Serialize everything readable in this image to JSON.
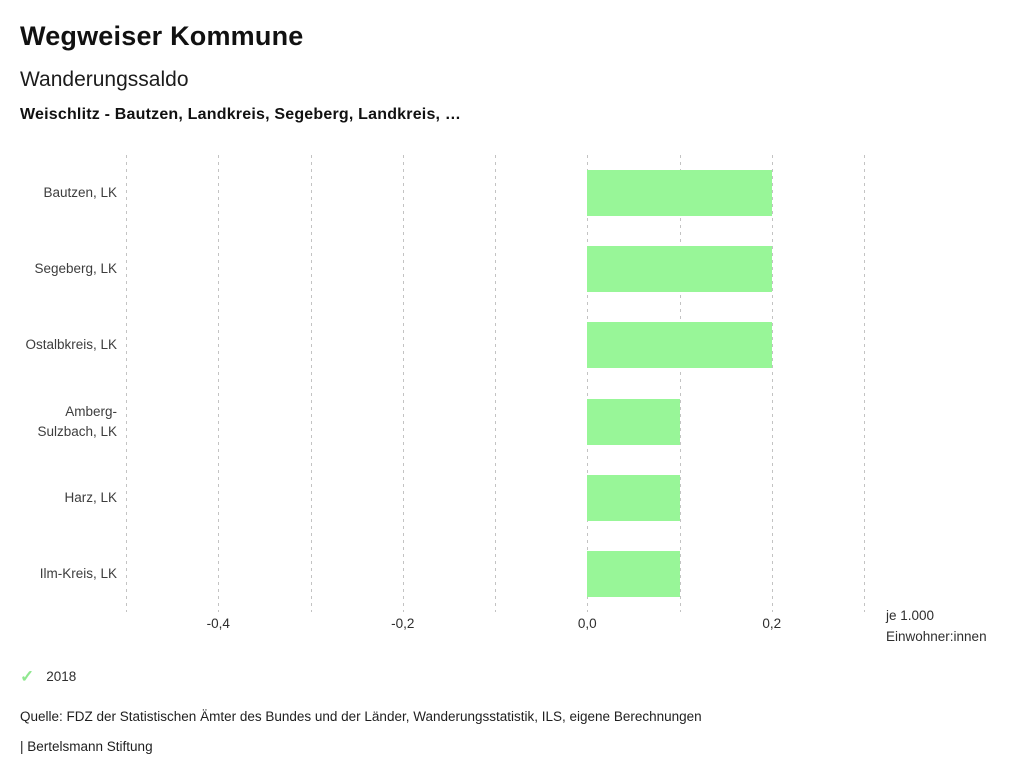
{
  "page": {
    "title": "Wegweiser Kommune",
    "subtitle": "Wanderungssaldo",
    "filter_line": "Weischlitz - Bautzen, Landkreis, Segeberg, Landkreis, …"
  },
  "chart_data": {
    "type": "bar",
    "orientation": "horizontal",
    "title": "Wanderungssaldo",
    "categories": [
      "Bautzen, LK",
      "Segeberg, LK",
      "Ostalbkreis, LK",
      "Amberg-Sulzbach, LK",
      "Harz, LK",
      "Ilm-Kreis, LK"
    ],
    "series": [
      {
        "name": "2018",
        "values": [
          0.2,
          0.2,
          0.2,
          0.1,
          0.1,
          0.1
        ]
      }
    ],
    "xlim": [
      -0.5,
      0.3
    ],
    "gridline_step": 0.1,
    "grid": true,
    "x_ticks": [
      -0.4,
      -0.2,
      0.0,
      0.2
    ],
    "x_tick_labels": [
      "-0,4",
      "-0,2",
      "0,0",
      "0,2"
    ],
    "xlabel_line1": "je 1.000",
    "xlabel_line2": "Einwohner:innen",
    "legend_position": "bottom-left"
  },
  "legend": {
    "year": "2018",
    "check_icon": "✓"
  },
  "footer": {
    "source": "Quelle: FDZ der Statistischen Ämter des Bundes und der Länder, Wanderungsstatistik, ILS, eigene Berechnungen",
    "branding": "| Bertelsmann Stiftung"
  },
  "colors": {
    "bar": "#98f698",
    "check": "#8fe78f",
    "gridline": "#c3c3c3"
  }
}
